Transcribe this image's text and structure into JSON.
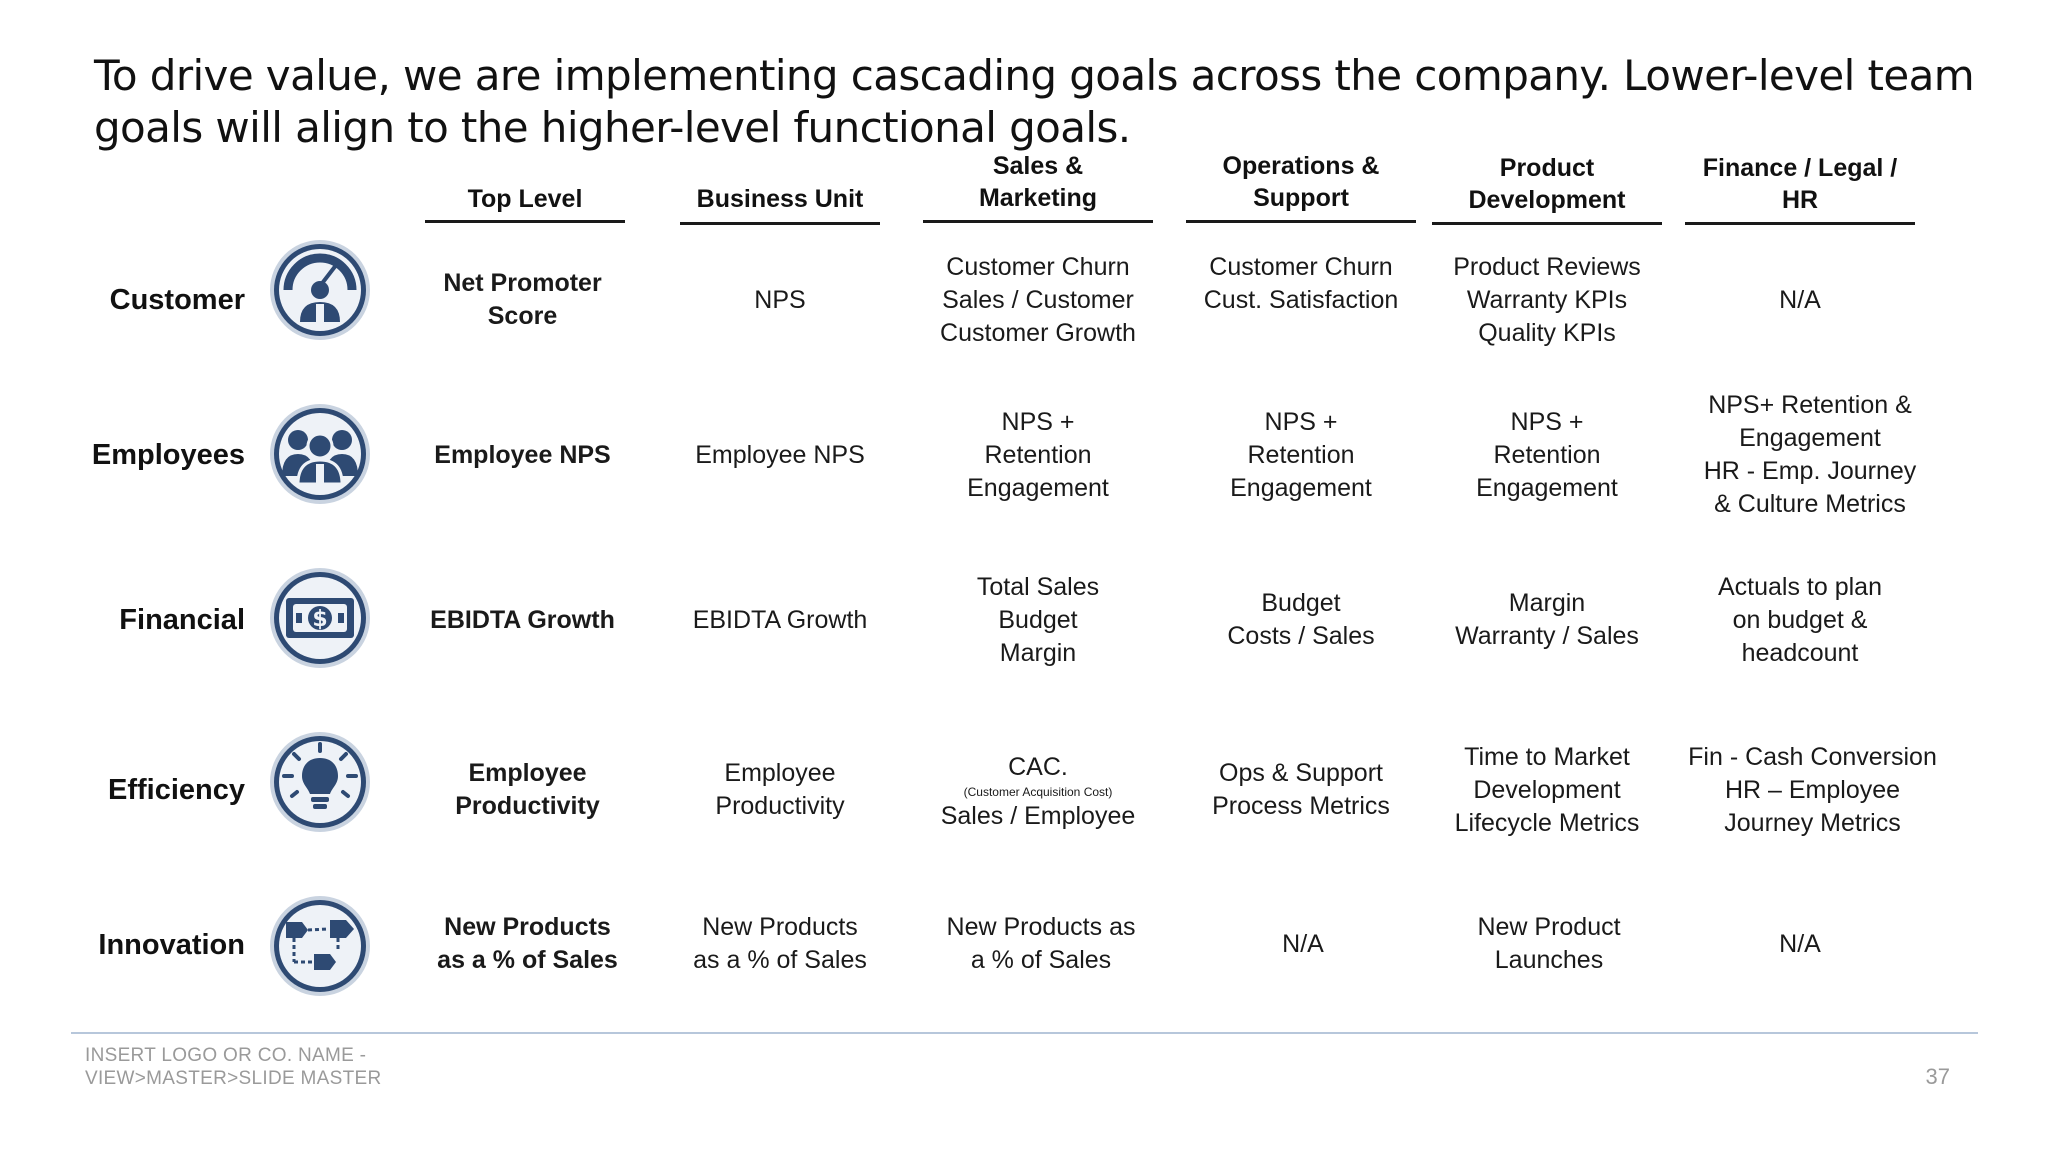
{
  "title": "To drive value, we are implementing cascading goals across the company. Lower-level team goals will align to the higher-level functional goals.",
  "columns": [
    {
      "lines": [
        "Top Level"
      ]
    },
    {
      "lines": [
        "Business Unit"
      ]
    },
    {
      "lines": [
        "Sales &",
        "Marketing"
      ]
    },
    {
      "lines": [
        "Operations &",
        "Support"
      ]
    },
    {
      "lines": [
        "Product",
        "Development"
      ]
    },
    {
      "lines": [
        "Finance / Legal /",
        "HR"
      ]
    }
  ],
  "rows": [
    {
      "label": "Customer",
      "icon": "gauge-person-icon",
      "cells": [
        [
          "Net Promoter",
          "Score"
        ],
        [
          "NPS"
        ],
        [
          "Customer Churn",
          "Sales / Customer",
          "Customer Growth"
        ],
        [
          "Customer Churn",
          "Cust. Satisfaction"
        ],
        [
          "Product Reviews",
          "Warranty KPIs",
          "Quality KPIs"
        ],
        [
          "N/A"
        ]
      ]
    },
    {
      "label": "Employees",
      "icon": "team-icon",
      "cells": [
        [
          "Employee NPS"
        ],
        [
          "Employee NPS"
        ],
        [
          "NPS +",
          "Retention",
          "Engagement"
        ],
        [
          "NPS +",
          "Retention",
          "Engagement"
        ],
        [
          "NPS +",
          "Retention",
          "Engagement"
        ],
        [
          "NPS+ Retention &",
          "Engagement",
          "HR - Emp. Journey",
          "& Culture Metrics"
        ]
      ]
    },
    {
      "label": "Financial",
      "icon": "dollar-bill-icon",
      "cells": [
        [
          "EBIDTA Growth"
        ],
        [
          "EBIDTA Growth"
        ],
        [
          "Total Sales",
          "Budget",
          "Margin"
        ],
        [
          "Budget",
          "Costs / Sales"
        ],
        [
          "Margin",
          "Warranty / Sales"
        ],
        [
          "Actuals to plan",
          "on budget &",
          "headcount"
        ]
      ]
    },
    {
      "label": "Efficiency",
      "icon": "lightbulb-icon",
      "cells": [
        [
          "Employee",
          "Productivity"
        ],
        [
          "Employee",
          "Productivity"
        ],
        [
          "CAC.",
          "(Customer Acquisition Cost)",
          "Sales / Employee"
        ],
        [
          "Ops & Support",
          "Process Metrics"
        ],
        [
          "Time to Market",
          "Development",
          "Lifecycle Metrics"
        ],
        [
          "Fin - Cash Conversion",
          "HR – Employee",
          "Journey Metrics"
        ]
      ]
    },
    {
      "label": "Innovation",
      "icon": "process-flow-icon",
      "cells": [
        [
          "New Products",
          "as a % of Sales"
        ],
        [
          "New Products",
          "as a % of Sales"
        ],
        [
          "New Products as",
          "a % of Sales"
        ],
        [
          "N/A"
        ],
        [
          "New Product",
          "Launches"
        ],
        [
          "N/A"
        ]
      ]
    }
  ],
  "footer": {
    "line1": "INSERT LOGO OR CO. NAME -",
    "line2": "VIEW>MASTER>SLIDE MASTER",
    "page_number": "37"
  },
  "colors": {
    "icon_fill": "#2e4a73",
    "icon_bg": "#eef2f7",
    "icon_ring": "#2e4a73",
    "footer_rule": "#b7c7db"
  }
}
